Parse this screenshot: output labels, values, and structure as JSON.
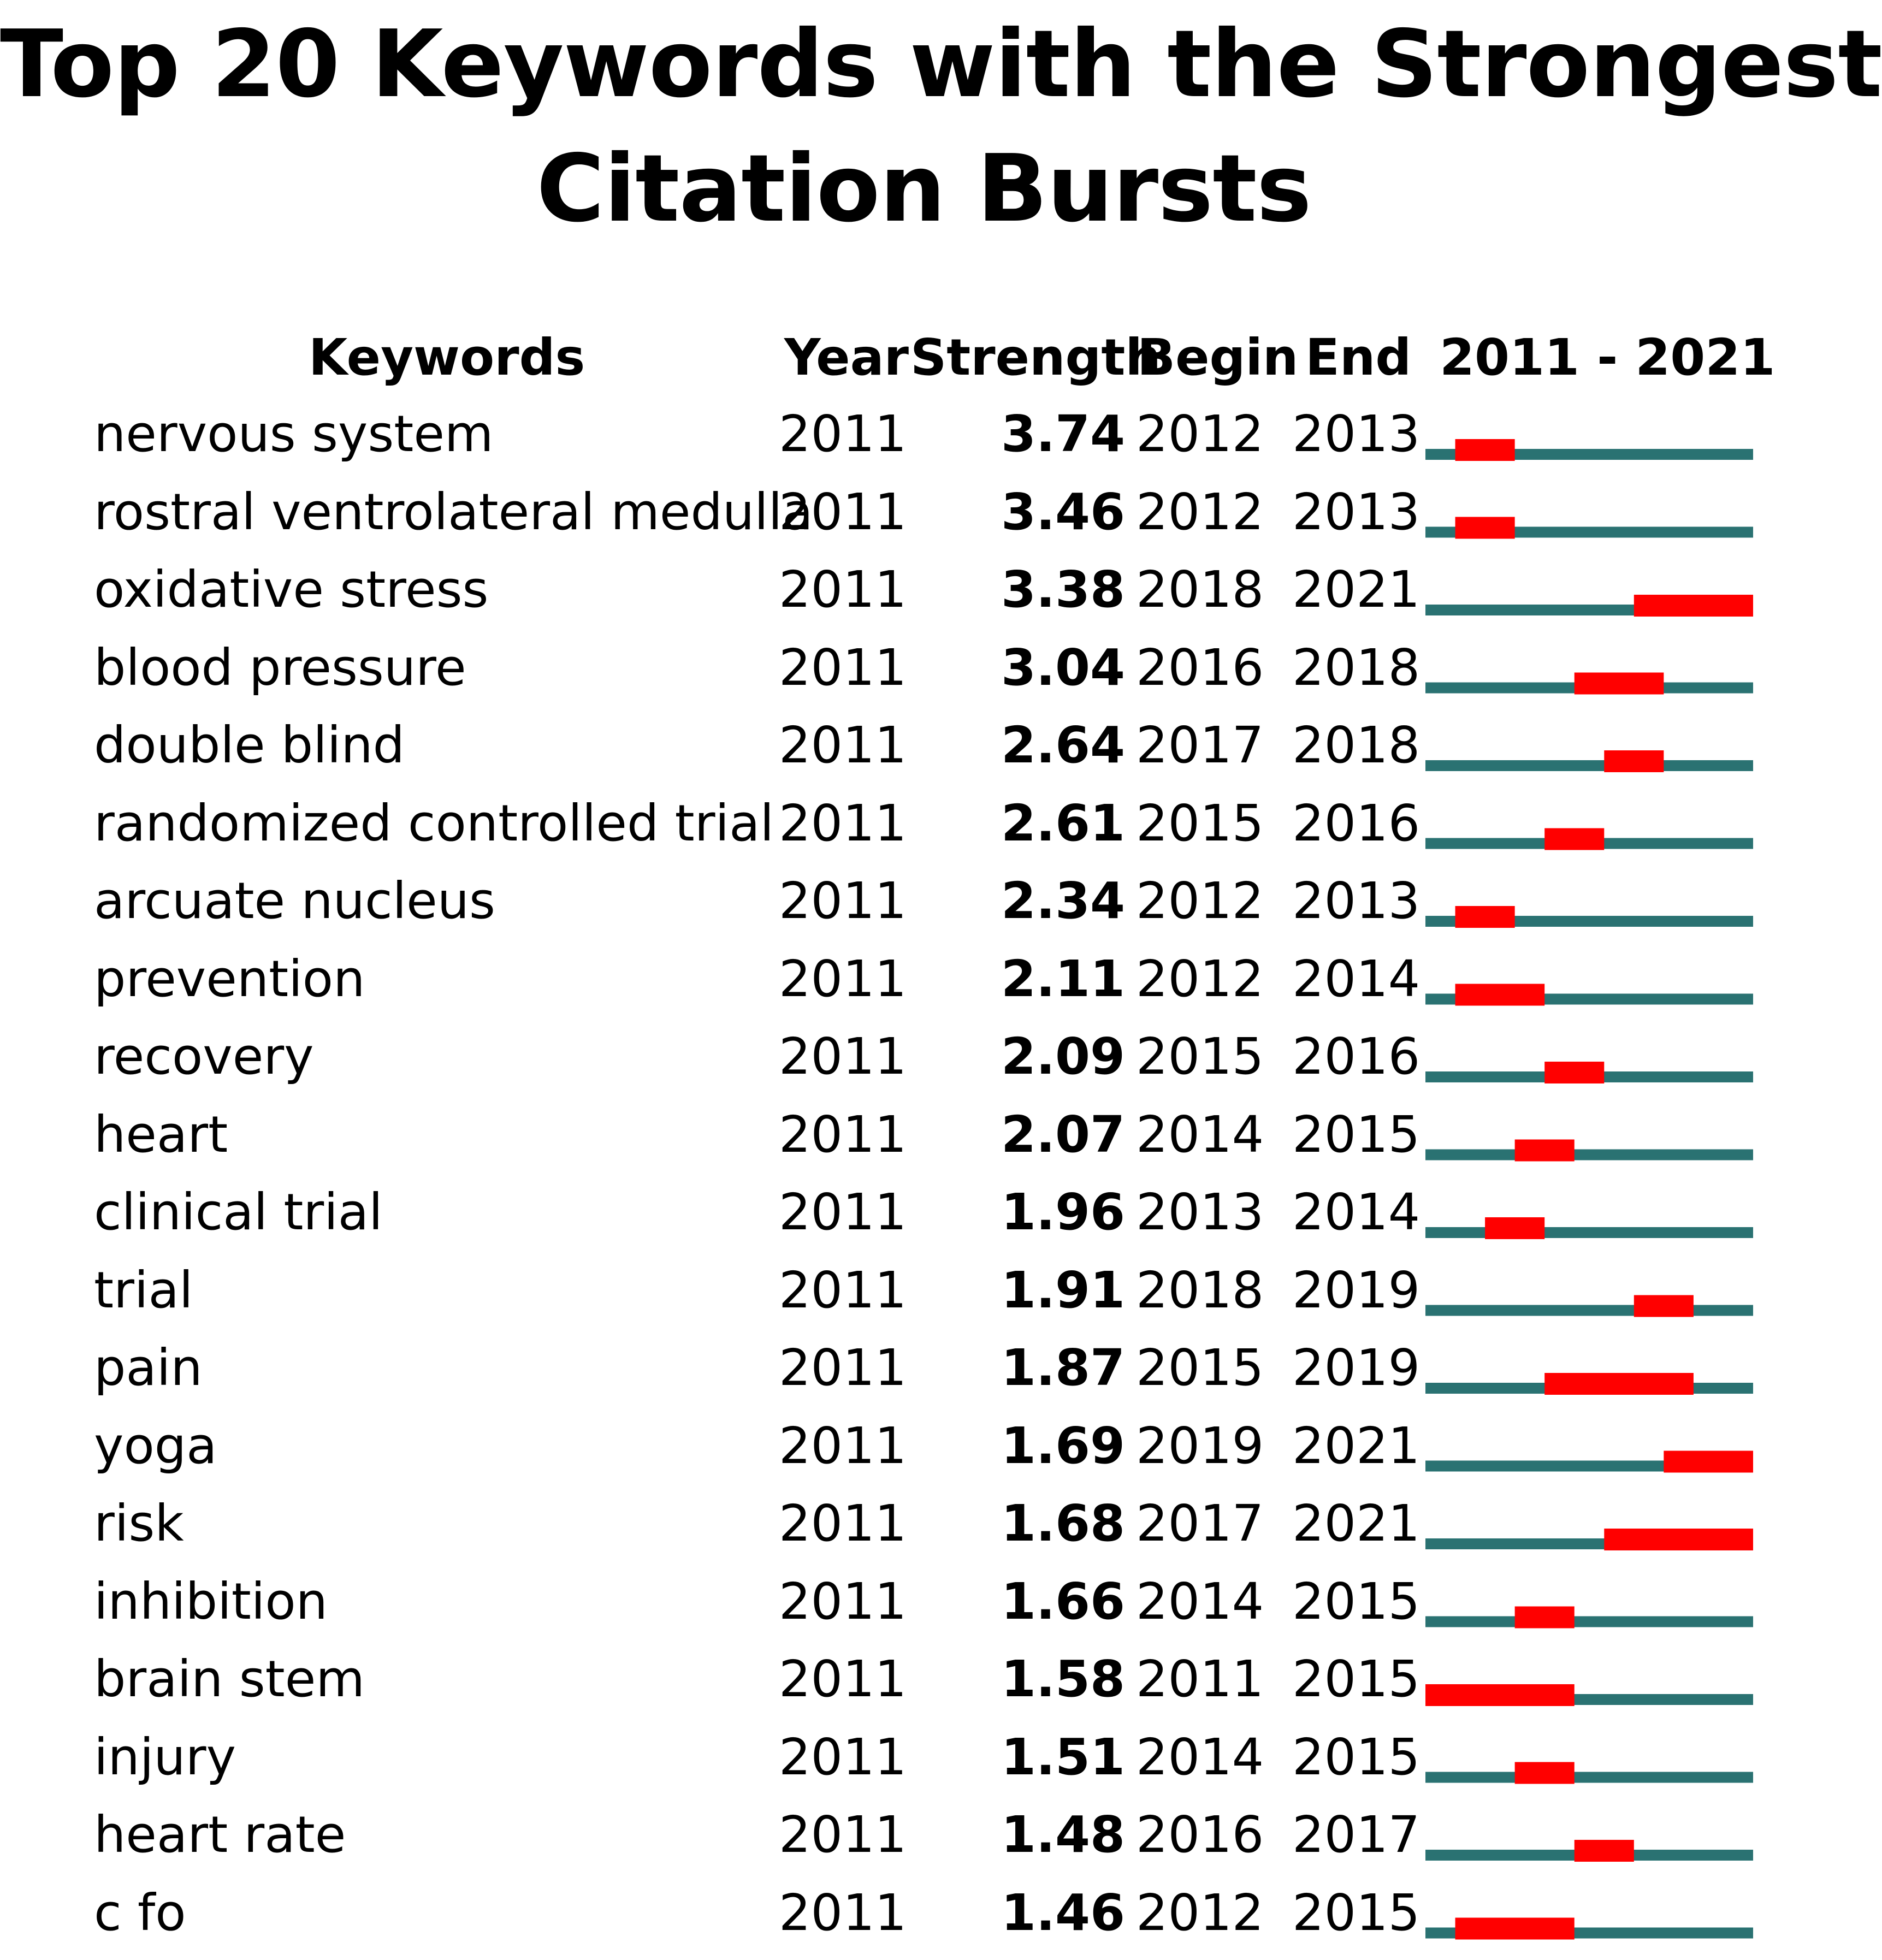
{
  "chart_data": {
    "type": "table",
    "title": [
      "Top 20 Keywords with the Strongest",
      "Citation Bursts"
    ],
    "columns": {
      "keywords": "Keywords",
      "year": "Year",
      "strength": "Strength",
      "begin": "Begin",
      "end": "End",
      "range": "2011 - 2021"
    },
    "timeline": {
      "start": 2011,
      "end": 2021
    },
    "colors": {
      "baseline": "#2a7272",
      "burst": "#ff0000"
    },
    "rows": [
      {
        "keyword": "nervous system",
        "year": "2011",
        "strength": "3.74",
        "begin": "2012",
        "end": "2013"
      },
      {
        "keyword": "rostral ventrolateral medulla",
        "year": "2011",
        "strength": "3.46",
        "begin": "2012",
        "end": "2013"
      },
      {
        "keyword": "oxidative stress",
        "year": "2011",
        "strength": "3.38",
        "begin": "2018",
        "end": "2021"
      },
      {
        "keyword": "blood pressure",
        "year": "2011",
        "strength": "3.04",
        "begin": "2016",
        "end": "2018"
      },
      {
        "keyword": "double blind",
        "year": "2011",
        "strength": "2.64",
        "begin": "2017",
        "end": "2018"
      },
      {
        "keyword": "randomized controlled trial",
        "year": "2011",
        "strength": "2.61",
        "begin": "2015",
        "end": "2016"
      },
      {
        "keyword": "arcuate nucleus",
        "year": "2011",
        "strength": "2.34",
        "begin": "2012",
        "end": "2013"
      },
      {
        "keyword": "prevention",
        "year": "2011",
        "strength": "2.11",
        "begin": "2012",
        "end": "2014"
      },
      {
        "keyword": "recovery",
        "year": "2011",
        "strength": "2.09",
        "begin": "2015",
        "end": "2016"
      },
      {
        "keyword": "heart",
        "year": "2011",
        "strength": "2.07",
        "begin": "2014",
        "end": "2015"
      },
      {
        "keyword": "clinical trial",
        "year": "2011",
        "strength": "1.96",
        "begin": "2013",
        "end": "2014"
      },
      {
        "keyword": "trial",
        "year": "2011",
        "strength": "1.91",
        "begin": "2018",
        "end": "2019"
      },
      {
        "keyword": "pain",
        "year": "2011",
        "strength": "1.87",
        "begin": "2015",
        "end": "2019"
      },
      {
        "keyword": "yoga",
        "year": "2011",
        "strength": "1.69",
        "begin": "2019",
        "end": "2021"
      },
      {
        "keyword": "risk",
        "year": "2011",
        "strength": "1.68",
        "begin": "2017",
        "end": "2021"
      },
      {
        "keyword": "inhibition",
        "year": "2011",
        "strength": "1.66",
        "begin": "2014",
        "end": "2015"
      },
      {
        "keyword": "brain stem",
        "year": "2011",
        "strength": "1.58",
        "begin": "2011",
        "end": "2015"
      },
      {
        "keyword": "injury",
        "year": "2011",
        "strength": "1.51",
        "begin": "2014",
        "end": "2015"
      },
      {
        "keyword": "heart rate",
        "year": "2011",
        "strength": "1.48",
        "begin": "2016",
        "end": "2017"
      },
      {
        "keyword": "c fo",
        "year": "2011",
        "strength": "1.46",
        "begin": "2012",
        "end": "2015"
      }
    ]
  }
}
